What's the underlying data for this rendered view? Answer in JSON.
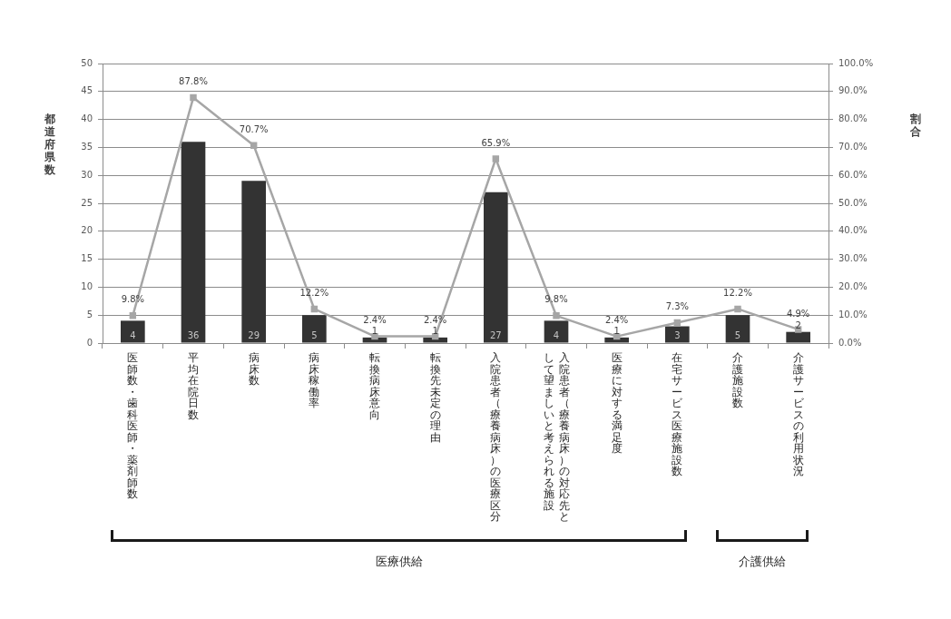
{
  "chart_data": {
    "type": "bar",
    "ylabel": "都道府県数",
    "y2label": "割合",
    "categories": [
      "医師数・歯科医師・薬剤師数",
      "平均在院日数",
      "病床数",
      "病床稼働率",
      "転換病床意向",
      "転換先未定の理由",
      "入院患者（療養病床）の医療区分",
      "入院患者（療養病床）の対応先として望ましいと考えられる施設",
      "医療に対する満足度",
      "在宅サービス医療施設数",
      "介護施設数",
      "介護サービスの利用状況"
    ],
    "series": [
      {
        "color": "#333333",
        "values": [
          4,
          36,
          29,
          5,
          1,
          1,
          27,
          4,
          1,
          3,
          5,
          2
        ],
        "value_labels": [
          "4",
          "36",
          "29",
          "5",
          "1",
          "1",
          "27",
          "4",
          "1",
          "3",
          "5",
          "2"
        ]
      },
      {
        "type": "line",
        "axis": "y2",
        "color": "#a6a6a6",
        "values": [
          9.8,
          87.8,
          70.7,
          12.2,
          2.4,
          2.4,
          65.9,
          9.8,
          2.4,
          7.3,
          12.2,
          4.9
        ],
        "value_labels": [
          "9.8%",
          "87.8%",
          "70.7%",
          "12.2%",
          "2.4%",
          "2.4%",
          "65.9%",
          "9.8%",
          "2.4%",
          "7.3%",
          "12.2%",
          "4.9%"
        ]
      }
    ],
    "ylim": [
      0,
      50
    ],
    "yticks": [
      0,
      5,
      10,
      15,
      20,
      25,
      30,
      35,
      40,
      45,
      50
    ],
    "y2lim": [
      0,
      100
    ],
    "y2ticks": [
      {
        "value": 0,
        "label": "0.0%"
      },
      {
        "value": 10,
        "label": "10.0%"
      },
      {
        "value": 20,
        "label": "20.0%"
      },
      {
        "value": 30,
        "label": "30.0%"
      },
      {
        "value": 40,
        "label": "40.0%"
      },
      {
        "value": 50,
        "label": "50.0%"
      },
      {
        "value": 60,
        "label": "60.0%"
      },
      {
        "value": 70,
        "label": "70.0%"
      },
      {
        "value": 80,
        "label": "80.0%"
      },
      {
        "value": 90,
        "label": "90.0%"
      },
      {
        "value": 100,
        "label": "100.0%"
      }
    ],
    "grid": "y",
    "marker": "square",
    "annotations": [
      "医療供給",
      "介護供給"
    ]
  }
}
